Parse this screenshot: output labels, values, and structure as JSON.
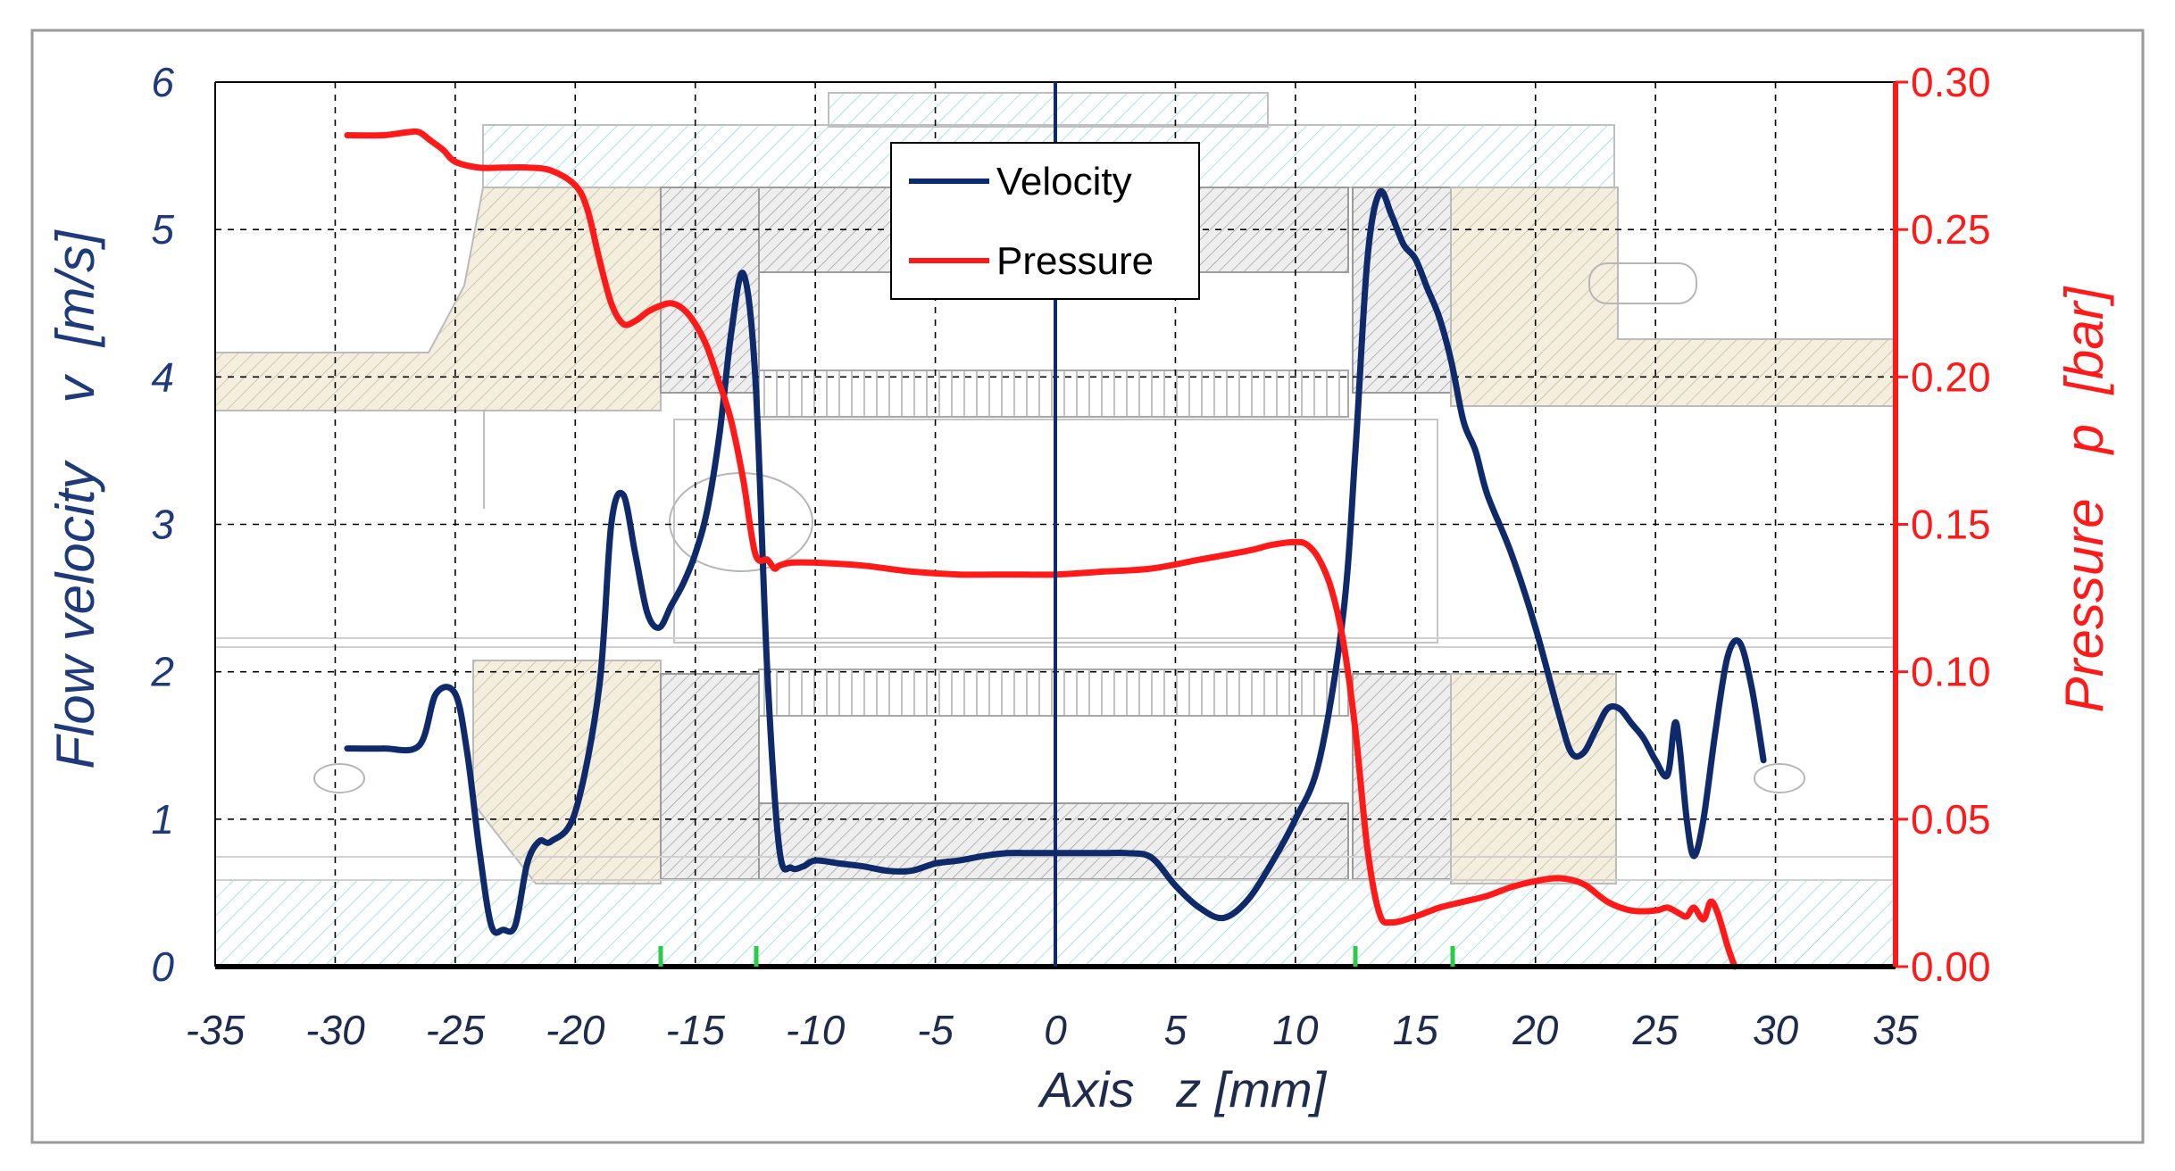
{
  "chart_data": {
    "type": "line",
    "title": "",
    "xlabel": "Axis   z [mm]",
    "ylabel_left": "Flow velocity    v  [m/s]",
    "ylabel_right": "Pressure   p  [bar]",
    "xlim": [
      -35,
      35
    ],
    "ylim_left": [
      0,
      6
    ],
    "ylim_right": [
      0,
      0.3
    ],
    "grid": true,
    "legend_position": "top-center",
    "x_ticks": [
      "-35",
      "-30",
      "-25",
      "-20",
      "-15",
      "-10",
      "-5",
      "0",
      "5",
      "10",
      "15",
      "20",
      "25",
      "30",
      "35"
    ],
    "y_left_ticks": [
      "0",
      "1",
      "2",
      "3",
      "4",
      "5",
      "6"
    ],
    "y_right_ticks": [
      "0.00",
      "0.05",
      "0.10",
      "0.15",
      "0.20",
      "0.25",
      "0.30"
    ],
    "colors": {
      "velocity": "#0f2a6b",
      "pressure": "#ff1a1a",
      "left_axis": "#1f3a7a",
      "right_axis": "#ff1a1a",
      "hatch": "#7fd6d6",
      "tan": "#d8cfa0"
    },
    "series": [
      {
        "name": "Velocity",
        "axis": "left",
        "x": [
          -29.5,
          -28,
          -26.5,
          -25.8,
          -25,
          -24.5,
          -24,
          -23.5,
          -23,
          -22.5,
          -22,
          -21.5,
          -21,
          -20,
          -19,
          -18.5,
          -18,
          -17.5,
          -17,
          -16.5,
          -16,
          -15.5,
          -15,
          -14.5,
          -14,
          -13.5,
          -13,
          -12.5,
          -12,
          -11.5,
          -11,
          -10.5,
          -10,
          -9,
          -8,
          -7,
          -6,
          -5,
          -4,
          -3,
          -2,
          -1,
          0,
          1,
          2,
          3,
          4,
          5,
          6,
          7,
          8,
          9,
          10,
          11,
          12,
          12.5,
          13,
          13.5,
          14,
          14.5,
          15,
          15.5,
          16,
          16.5,
          17,
          17.5,
          18,
          19,
          20,
          21,
          21.5,
          22,
          22.5,
          23,
          23.5,
          24,
          24.5,
          25,
          25.5,
          25.8,
          26,
          26.3,
          26.6,
          27,
          27.5,
          28,
          28.5,
          29,
          29.5
        ],
        "values": [
          1.48,
          1.48,
          1.5,
          1.85,
          1.85,
          1.45,
          0.8,
          0.28,
          0.25,
          0.28,
          0.7,
          0.85,
          0.85,
          1.05,
          1.9,
          3.0,
          3.2,
          2.8,
          2.4,
          2.3,
          2.45,
          2.6,
          2.8,
          3.1,
          3.6,
          4.3,
          4.7,
          4.0,
          2.0,
          0.8,
          0.67,
          0.68,
          0.72,
          0.7,
          0.68,
          0.65,
          0.65,
          0.7,
          0.72,
          0.75,
          0.77,
          0.77,
          0.77,
          0.77,
          0.77,
          0.77,
          0.74,
          0.55,
          0.4,
          0.33,
          0.45,
          0.7,
          1.0,
          1.4,
          2.4,
          3.5,
          4.8,
          5.25,
          5.1,
          4.9,
          4.8,
          4.6,
          4.4,
          4.1,
          3.7,
          3.5,
          3.2,
          2.8,
          2.3,
          1.7,
          1.45,
          1.45,
          1.6,
          1.75,
          1.75,
          1.65,
          1.55,
          1.4,
          1.3,
          1.65,
          1.5,
          1.0,
          0.75,
          1.0,
          1.6,
          2.1,
          2.2,
          1.9,
          1.4
        ]
      },
      {
        "name": "Pressure",
        "axis": "right",
        "x": [
          -29.5,
          -28,
          -27,
          -26.5,
          -26,
          -25.5,
          -25,
          -24,
          -23,
          -22,
          -21,
          -20,
          -19.5,
          -19,
          -18.5,
          -18,
          -17.5,
          -17,
          -16.5,
          -16,
          -15.5,
          -15,
          -14.5,
          -14,
          -13.5,
          -13,
          -12.5,
          -12,
          -11.7,
          -11.5,
          -11,
          -10,
          -8,
          -6,
          -4,
          -2,
          0,
          2,
          4,
          6,
          8,
          9,
          10,
          10.5,
          11,
          11.5,
          12,
          12.5,
          13,
          13.5,
          14,
          15,
          16,
          17,
          18,
          19,
          20,
          21,
          22,
          23,
          24,
          25,
          25.5,
          26,
          26.3,
          26.6,
          27,
          27.3,
          27.6,
          28,
          28.3
        ],
        "values": [
          0.282,
          0.282,
          0.283,
          0.283,
          0.28,
          0.277,
          0.273,
          0.271,
          0.271,
          0.271,
          0.27,
          0.265,
          0.257,
          0.24,
          0.225,
          0.218,
          0.219,
          0.222,
          0.224,
          0.225,
          0.223,
          0.218,
          0.21,
          0.198,
          0.185,
          0.165,
          0.14,
          0.138,
          0.135,
          0.136,
          0.137,
          0.137,
          0.136,
          0.134,
          0.133,
          0.133,
          0.133,
          0.134,
          0.135,
          0.138,
          0.141,
          0.143,
          0.144,
          0.143,
          0.138,
          0.128,
          0.11,
          0.08,
          0.04,
          0.018,
          0.015,
          0.017,
          0.02,
          0.022,
          0.024,
          0.027,
          0.029,
          0.03,
          0.028,
          0.022,
          0.019,
          0.019,
          0.02,
          0.018,
          0.017,
          0.02,
          0.016,
          0.022,
          0.018,
          0.007,
          0.0
        ]
      }
    ]
  }
}
